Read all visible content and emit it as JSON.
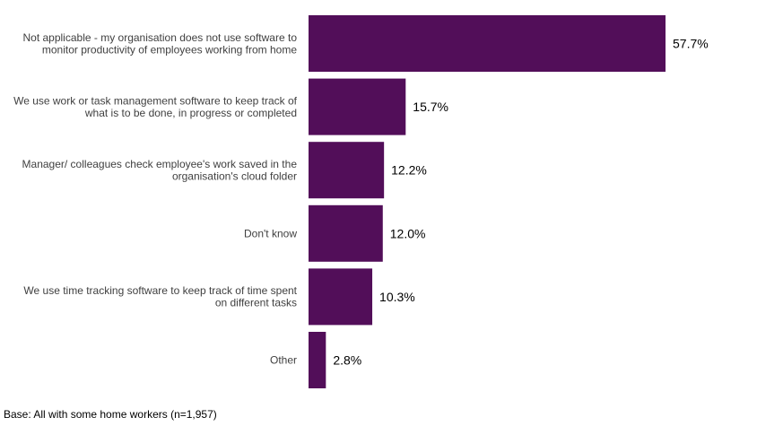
{
  "chart_data": {
    "type": "bar",
    "orientation": "horizontal",
    "categories": [
      [
        "Not applicable - my organisation does not use software to",
        "monitor productivity of employees working from home"
      ],
      [
        "We use work or task management software to keep track of",
        "what is to be done, in progress or completed"
      ],
      [
        "Manager/ colleagues check employee's work saved in the",
        "organisation's cloud folder"
      ],
      [
        "Don't know"
      ],
      [
        "We use time tracking software to keep track of time spent",
        "on different tasks"
      ],
      [
        "Other"
      ]
    ],
    "values": [
      57.7,
      15.7,
      12.2,
      12.0,
      10.3,
      2.8
    ],
    "value_labels": [
      "57.7%",
      "15.7%",
      "12.2%",
      "12.0%",
      "10.3%",
      "2.8%"
    ],
    "unit": "%",
    "xlim": [
      0,
      70
    ],
    "grid": false,
    "legend": "none",
    "bar_color": "#520e59",
    "title": "",
    "xlabel": "",
    "ylabel": ""
  },
  "footnote": "Base: All with some home workers (n=1,957)"
}
